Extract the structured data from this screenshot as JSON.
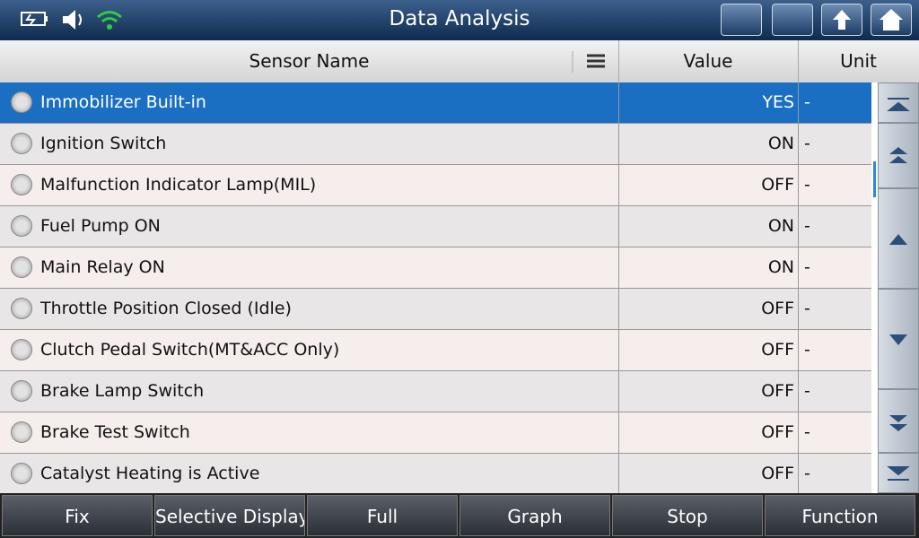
{
  "header": {
    "title": "Data Analysis"
  },
  "table": {
    "columns": [
      "Sensor Name",
      "Value",
      "Unit"
    ],
    "rows": [
      [
        "Immobilizer Built-in",
        "YES",
        "-"
      ],
      [
        "Ignition Switch",
        "ON",
        "-"
      ],
      [
        "Malfunction Indicator Lamp(MIL)",
        "OFF",
        "-"
      ],
      [
        "Fuel Pump ON",
        "ON",
        "-"
      ],
      [
        "Main Relay ON",
        "ON",
        "-"
      ],
      [
        "Throttle Position Closed (Idle)",
        "OFF",
        "-"
      ],
      [
        "Clutch Pedal Switch(MT&ACC Only)",
        "OFF",
        "-"
      ],
      [
        "Brake Lamp Switch",
        "OFF",
        "-"
      ],
      [
        "Brake Test Switch",
        "OFF",
        "-"
      ],
      [
        "Catalyst Heating is Active",
        "OFF",
        "-"
      ]
    ]
  },
  "toolbar": {
    "buttons": [
      "Fix",
      "Selective Display",
      "Full",
      "Graph",
      "Stop",
      "Function"
    ]
  }
}
